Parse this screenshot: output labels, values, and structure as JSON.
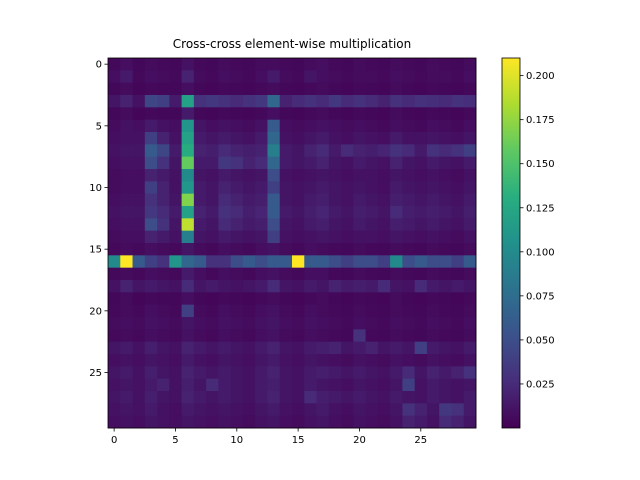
{
  "chart_data": {
    "type": "heatmap",
    "title": "Cross-cross element-wise multiplication",
    "xlabel": "",
    "ylabel": "",
    "rows": 30,
    "cols": 30,
    "xlim": [
      -0.5,
      29.5
    ],
    "ylim": [
      29.5,
      -0.5
    ],
    "x_ticks": [
      0,
      5,
      10,
      15,
      20,
      25
    ],
    "y_ticks": [
      0,
      5,
      10,
      15,
      20,
      25
    ],
    "colormap": "viridis",
    "colorbar": {
      "min": 0.0,
      "max": 0.21,
      "ticks": [
        "0.025",
        "0.050",
        "0.075",
        "0.100",
        "0.125",
        "0.150",
        "0.175",
        "0.200"
      ]
    },
    "values_row_major_rounded": [
      [
        0.005,
        0.008,
        0.004,
        0.006,
        0.005,
        0.004,
        0.01,
        0.005,
        0.004,
        0.006,
        0.005,
        0.004,
        0.006,
        0.007,
        0.005,
        0.004,
        0.006,
        0.008,
        0.005,
        0.004,
        0.006,
        0.005,
        0.004,
        0.007,
        0.005,
        0.004,
        0.006,
        0.005,
        0.004,
        0.006
      ],
      [
        0.008,
        0.015,
        0.005,
        0.008,
        0.006,
        0.005,
        0.02,
        0.006,
        0.005,
        0.008,
        0.006,
        0.005,
        0.008,
        0.015,
        0.006,
        0.005,
        0.012,
        0.008,
        0.006,
        0.005,
        0.007,
        0.006,
        0.005,
        0.008,
        0.006,
        0.005,
        0.007,
        0.006,
        0.005,
        0.008
      ],
      [
        0.004,
        0.006,
        0.003,
        0.005,
        0.004,
        0.004,
        0.008,
        0.004,
        0.003,
        0.005,
        0.004,
        0.003,
        0.005,
        0.006,
        0.004,
        0.003,
        0.005,
        0.006,
        0.004,
        0.003,
        0.005,
        0.004,
        0.003,
        0.006,
        0.004,
        0.003,
        0.005,
        0.004,
        0.003,
        0.005
      ],
      [
        0.012,
        0.02,
        0.01,
        0.045,
        0.04,
        0.015,
        0.12,
        0.03,
        0.035,
        0.03,
        0.025,
        0.03,
        0.035,
        0.07,
        0.02,
        0.025,
        0.03,
        0.025,
        0.035,
        0.025,
        0.03,
        0.025,
        0.02,
        0.03,
        0.025,
        0.03,
        0.028,
        0.025,
        0.03,
        0.028
      ],
      [
        0.004,
        0.006,
        0.003,
        0.005,
        0.004,
        0.004,
        0.015,
        0.004,
        0.003,
        0.005,
        0.004,
        0.003,
        0.005,
        0.008,
        0.004,
        0.003,
        0.005,
        0.006,
        0.004,
        0.003,
        0.005,
        0.004,
        0.003,
        0.006,
        0.004,
        0.003,
        0.005,
        0.004,
        0.003,
        0.005
      ],
      [
        0.006,
        0.01,
        0.008,
        0.015,
        0.01,
        0.008,
        0.11,
        0.012,
        0.008,
        0.01,
        0.008,
        0.006,
        0.01,
        0.06,
        0.008,
        0.006,
        0.008,
        0.01,
        0.008,
        0.006,
        0.008,
        0.006,
        0.005,
        0.008,
        0.006,
        0.005,
        0.008,
        0.006,
        0.005,
        0.008
      ],
      [
        0.008,
        0.01,
        0.01,
        0.04,
        0.02,
        0.01,
        0.12,
        0.015,
        0.012,
        0.015,
        0.012,
        0.01,
        0.015,
        0.07,
        0.01,
        0.008,
        0.012,
        0.015,
        0.01,
        0.008,
        0.012,
        0.01,
        0.008,
        0.015,
        0.01,
        0.01,
        0.012,
        0.01,
        0.008,
        0.012
      ],
      [
        0.01,
        0.012,
        0.012,
        0.06,
        0.045,
        0.015,
        0.13,
        0.02,
        0.018,
        0.025,
        0.02,
        0.018,
        0.02,
        0.09,
        0.015,
        0.012,
        0.02,
        0.025,
        0.015,
        0.025,
        0.02,
        0.018,
        0.022,
        0.03,
        0.025,
        0.015,
        0.03,
        0.025,
        0.03,
        0.04
      ],
      [
        0.008,
        0.01,
        0.01,
        0.05,
        0.03,
        0.012,
        0.16,
        0.015,
        0.015,
        0.035,
        0.03,
        0.02,
        0.025,
        0.07,
        0.015,
        0.012,
        0.015,
        0.02,
        0.012,
        0.01,
        0.015,
        0.012,
        0.01,
        0.02,
        0.012,
        0.01,
        0.015,
        0.012,
        0.01,
        0.015
      ],
      [
        0.006,
        0.008,
        0.008,
        0.02,
        0.015,
        0.01,
        0.1,
        0.012,
        0.01,
        0.015,
        0.012,
        0.01,
        0.012,
        0.05,
        0.01,
        0.008,
        0.01,
        0.012,
        0.01,
        0.008,
        0.01,
        0.01,
        0.008,
        0.012,
        0.01,
        0.008,
        0.01,
        0.008,
        0.006,
        0.01
      ],
      [
        0.006,
        0.008,
        0.008,
        0.04,
        0.02,
        0.01,
        0.11,
        0.015,
        0.012,
        0.02,
        0.015,
        0.012,
        0.015,
        0.04,
        0.012,
        0.01,
        0.012,
        0.015,
        0.012,
        0.01,
        0.012,
        0.01,
        0.008,
        0.015,
        0.012,
        0.01,
        0.012,
        0.01,
        0.008,
        0.012
      ],
      [
        0.008,
        0.01,
        0.01,
        0.03,
        0.02,
        0.012,
        0.17,
        0.015,
        0.012,
        0.025,
        0.02,
        0.015,
        0.018,
        0.06,
        0.012,
        0.01,
        0.015,
        0.018,
        0.012,
        0.01,
        0.015,
        0.012,
        0.01,
        0.018,
        0.015,
        0.012,
        0.015,
        0.012,
        0.01,
        0.015
      ],
      [
        0.01,
        0.012,
        0.012,
        0.035,
        0.025,
        0.015,
        0.12,
        0.02,
        0.015,
        0.03,
        0.025,
        0.018,
        0.022,
        0.06,
        0.015,
        0.012,
        0.018,
        0.022,
        0.015,
        0.012,
        0.018,
        0.015,
        0.012,
        0.025,
        0.018,
        0.015,
        0.018,
        0.015,
        0.012,
        0.018
      ],
      [
        0.008,
        0.01,
        0.01,
        0.05,
        0.03,
        0.012,
        0.19,
        0.015,
        0.012,
        0.025,
        0.02,
        0.015,
        0.018,
        0.05,
        0.012,
        0.01,
        0.015,
        0.018,
        0.012,
        0.01,
        0.015,
        0.012,
        0.01,
        0.018,
        0.015,
        0.012,
        0.015,
        0.012,
        0.01,
        0.015
      ],
      [
        0.006,
        0.008,
        0.008,
        0.02,
        0.015,
        0.01,
        0.09,
        0.012,
        0.01,
        0.015,
        0.012,
        0.01,
        0.012,
        0.04,
        0.01,
        0.008,
        0.01,
        0.012,
        0.01,
        0.008,
        0.01,
        0.01,
        0.008,
        0.012,
        0.01,
        0.008,
        0.01,
        0.008,
        0.006,
        0.01
      ],
      [
        0.005,
        0.006,
        0.005,
        0.008,
        0.006,
        0.005,
        0.012,
        0.006,
        0.005,
        0.008,
        0.006,
        0.005,
        0.008,
        0.01,
        0.006,
        0.005,
        0.008,
        0.006,
        0.005,
        0.004,
        0.006,
        0.005,
        0.004,
        0.007,
        0.005,
        0.004,
        0.006,
        0.005,
        0.004,
        0.006
      ],
      [
        0.1,
        0.21,
        0.06,
        0.04,
        0.03,
        0.11,
        0.07,
        0.06,
        0.03,
        0.03,
        0.05,
        0.06,
        0.05,
        0.06,
        0.06,
        0.21,
        0.06,
        0.06,
        0.05,
        0.04,
        0.05,
        0.05,
        0.04,
        0.1,
        0.05,
        0.06,
        0.05,
        0.05,
        0.04,
        0.06
      ],
      [
        0.005,
        0.006,
        0.005,
        0.008,
        0.006,
        0.005,
        0.015,
        0.008,
        0.005,
        0.008,
        0.006,
        0.005,
        0.008,
        0.01,
        0.006,
        0.005,
        0.008,
        0.008,
        0.005,
        0.004,
        0.006,
        0.005,
        0.004,
        0.007,
        0.005,
        0.004,
        0.006,
        0.005,
        0.004,
        0.006
      ],
      [
        0.01,
        0.02,
        0.012,
        0.015,
        0.012,
        0.01,
        0.025,
        0.012,
        0.015,
        0.012,
        0.01,
        0.012,
        0.015,
        0.025,
        0.012,
        0.01,
        0.015,
        0.012,
        0.02,
        0.015,
        0.018,
        0.015,
        0.025,
        0.012,
        0.01,
        0.025,
        0.015,
        0.012,
        0.015,
        0.012
      ],
      [
        0.004,
        0.006,
        0.003,
        0.005,
        0.004,
        0.004,
        0.008,
        0.004,
        0.003,
        0.005,
        0.004,
        0.003,
        0.005,
        0.006,
        0.004,
        0.003,
        0.005,
        0.006,
        0.004,
        0.003,
        0.005,
        0.004,
        0.003,
        0.006,
        0.004,
        0.003,
        0.005,
        0.004,
        0.003,
        0.005
      ],
      [
        0.005,
        0.006,
        0.005,
        0.008,
        0.006,
        0.005,
        0.04,
        0.006,
        0.005,
        0.008,
        0.006,
        0.005,
        0.008,
        0.01,
        0.006,
        0.005,
        0.008,
        0.006,
        0.005,
        0.004,
        0.006,
        0.005,
        0.004,
        0.007,
        0.005,
        0.004,
        0.006,
        0.005,
        0.004,
        0.006
      ],
      [
        0.006,
        0.008,
        0.006,
        0.01,
        0.008,
        0.006,
        0.012,
        0.008,
        0.006,
        0.01,
        0.008,
        0.006,
        0.01,
        0.012,
        0.008,
        0.006,
        0.01,
        0.008,
        0.006,
        0.005,
        0.008,
        0.006,
        0.005,
        0.008,
        0.006,
        0.005,
        0.008,
        0.006,
        0.005,
        0.008
      ],
      [
        0.005,
        0.006,
        0.005,
        0.008,
        0.006,
        0.005,
        0.01,
        0.006,
        0.005,
        0.008,
        0.006,
        0.005,
        0.008,
        0.01,
        0.006,
        0.005,
        0.008,
        0.006,
        0.005,
        0.004,
        0.03,
        0.005,
        0.004,
        0.007,
        0.005,
        0.004,
        0.006,
        0.005,
        0.004,
        0.006
      ],
      [
        0.012,
        0.015,
        0.01,
        0.018,
        0.012,
        0.01,
        0.02,
        0.015,
        0.012,
        0.015,
        0.012,
        0.01,
        0.015,
        0.02,
        0.012,
        0.01,
        0.015,
        0.018,
        0.02,
        0.012,
        0.015,
        0.02,
        0.012,
        0.015,
        0.012,
        0.04,
        0.015,
        0.012,
        0.01,
        0.015
      ],
      [
        0.008,
        0.01,
        0.008,
        0.012,
        0.01,
        0.008,
        0.015,
        0.01,
        0.008,
        0.012,
        0.01,
        0.008,
        0.012,
        0.015,
        0.01,
        0.008,
        0.012,
        0.01,
        0.008,
        0.006,
        0.01,
        0.008,
        0.006,
        0.01,
        0.008,
        0.006,
        0.01,
        0.008,
        0.006,
        0.01
      ],
      [
        0.012,
        0.015,
        0.01,
        0.018,
        0.012,
        0.01,
        0.02,
        0.015,
        0.012,
        0.015,
        0.012,
        0.01,
        0.015,
        0.02,
        0.012,
        0.01,
        0.015,
        0.018,
        0.015,
        0.012,
        0.015,
        0.012,
        0.01,
        0.015,
        0.025,
        0.012,
        0.02,
        0.015,
        0.02,
        0.03
      ],
      [
        0.01,
        0.012,
        0.01,
        0.015,
        0.02,
        0.01,
        0.018,
        0.012,
        0.025,
        0.015,
        0.012,
        0.01,
        0.015,
        0.018,
        0.012,
        0.01,
        0.015,
        0.012,
        0.01,
        0.008,
        0.012,
        0.01,
        0.008,
        0.012,
        0.04,
        0.01,
        0.015,
        0.012,
        0.01,
        0.012
      ],
      [
        0.012,
        0.015,
        0.01,
        0.018,
        0.012,
        0.01,
        0.02,
        0.015,
        0.012,
        0.015,
        0.012,
        0.01,
        0.015,
        0.02,
        0.012,
        0.01,
        0.025,
        0.018,
        0.015,
        0.012,
        0.015,
        0.012,
        0.01,
        0.015,
        0.012,
        0.01,
        0.015,
        0.012,
        0.01,
        0.015
      ],
      [
        0.01,
        0.012,
        0.01,
        0.015,
        0.01,
        0.008,
        0.015,
        0.012,
        0.01,
        0.012,
        0.01,
        0.008,
        0.012,
        0.015,
        0.01,
        0.008,
        0.012,
        0.015,
        0.01,
        0.008,
        0.012,
        0.01,
        0.008,
        0.012,
        0.03,
        0.02,
        0.012,
        0.035,
        0.03,
        0.015
      ],
      [
        0.008,
        0.01,
        0.008,
        0.012,
        0.01,
        0.008,
        0.012,
        0.01,
        0.008,
        0.01,
        0.008,
        0.006,
        0.01,
        0.012,
        0.008,
        0.006,
        0.01,
        0.012,
        0.008,
        0.006,
        0.01,
        0.008,
        0.006,
        0.01,
        0.02,
        0.015,
        0.01,
        0.025,
        0.02,
        0.012
      ]
    ]
  }
}
